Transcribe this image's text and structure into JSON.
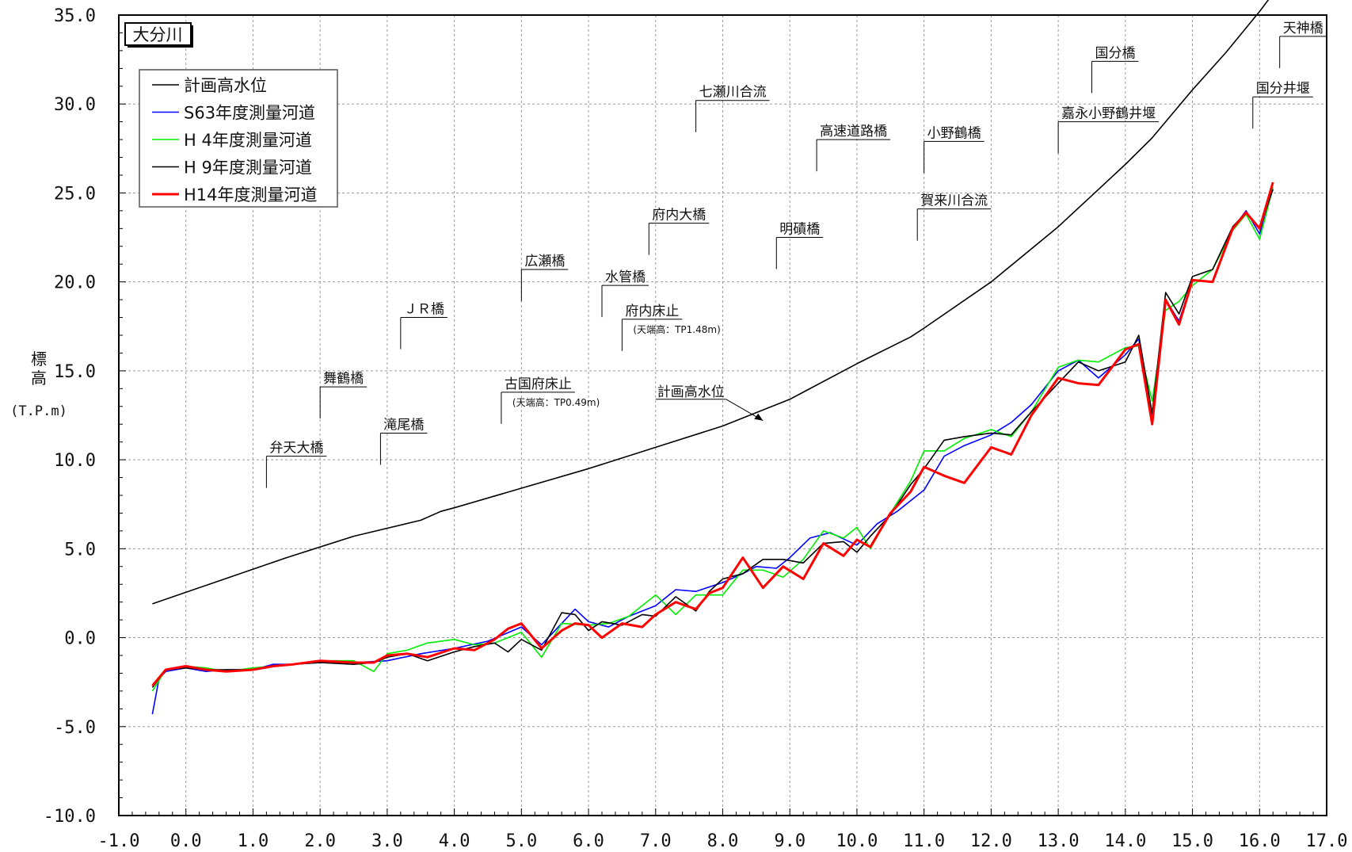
{
  "chart_data": {
    "type": "line",
    "title": "大分川",
    "ylabel_chars": [
      "標",
      "高"
    ],
    "ylabel_unit": "(T.P.m)",
    "xlim": [
      -1.0,
      17.0
    ],
    "ylim": [
      -10.0,
      35.0
    ],
    "x_ticks": [
      "-1.0",
      "0.0",
      "1.0",
      "2.0",
      "3.0",
      "4.0",
      "5.0",
      "6.0",
      "7.0",
      "8.0",
      "9.0",
      "10.0",
      "11.0",
      "12.0",
      "13.0",
      "14.0",
      "15.0",
      "16.0",
      "17.0"
    ],
    "y_ticks": [
      "35.0",
      "30.0",
      "25.0",
      "20.0",
      "15.0",
      "10.0",
      "5.0",
      "0.0",
      "-5.0",
      "-10.0"
    ],
    "grid": true,
    "legend_position": "top-left",
    "series": [
      {
        "name": "計画高水位",
        "color": "#000000",
        "x": [
          -0.5,
          0.5,
          1.5,
          2.5,
          3.5,
          3.8,
          4.0,
          5.0,
          6.0,
          7.0,
          8.0,
          8.6,
          9.0,
          10.0,
          10.8,
          11.0,
          12.0,
          13.0,
          14.0,
          14.4,
          15.0,
          15.5,
          16.0,
          16.2
        ],
        "y": [
          1.9,
          3.2,
          4.5,
          5.7,
          6.6,
          7.1,
          7.3,
          8.4,
          9.5,
          10.7,
          11.9,
          12.8,
          13.4,
          15.4,
          16.9,
          17.4,
          20.0,
          23.1,
          26.6,
          28.1,
          30.8,
          32.9,
          35.2,
          36.2
        ]
      },
      {
        "name": "S63年度測量河道",
        "color": "#0000ff",
        "x": [
          -0.5,
          -0.4,
          -0.3,
          0.0,
          0.3,
          0.6,
          1.0,
          1.3,
          1.6,
          2.0,
          2.5,
          3.0,
          3.5,
          4.0,
          4.5,
          5.0,
          5.3,
          5.6,
          5.8,
          6.0,
          6.3,
          6.6,
          7.0,
          7.3,
          7.6,
          8.0,
          8.3,
          8.5,
          8.8,
          9.0,
          9.3,
          9.6,
          10.0,
          10.3,
          10.6,
          11.0,
          11.3,
          11.6,
          12.0,
          12.3,
          12.6,
          13.0,
          13.3,
          13.6,
          14.0,
          14.2,
          14.4,
          14.6,
          14.8,
          15.0,
          15.3,
          15.6,
          15.8,
          16.0,
          16.2
        ],
        "y": [
          -4.3,
          -2.3,
          -1.9,
          -1.7,
          -1.9,
          -1.8,
          -1.8,
          -1.5,
          -1.5,
          -1.4,
          -1.4,
          -1.3,
          -0.9,
          -0.6,
          -0.2,
          0.6,
          -0.4,
          0.8,
          1.6,
          0.9,
          0.6,
          1.2,
          1.8,
          2.7,
          2.6,
          3.1,
          3.6,
          4.0,
          3.9,
          4.5,
          5.6,
          5.9,
          5.2,
          6.4,
          7.1,
          8.3,
          10.2,
          10.8,
          11.4,
          12.1,
          13.1,
          15.0,
          15.6,
          14.6,
          15.9,
          16.8,
          12.4,
          19.0,
          17.8,
          20.1,
          20.0,
          23.0,
          24.0,
          22.7,
          25.3
        ]
      },
      {
        "name": "H 4年度測量河道",
        "color": "#00ee00",
        "x": [
          -0.5,
          -0.3,
          0.0,
          0.3,
          0.6,
          1.0,
          1.3,
          1.6,
          2.0,
          2.5,
          2.8,
          3.0,
          3.3,
          3.6,
          4.0,
          4.3,
          4.6,
          5.0,
          5.3,
          5.6,
          6.0,
          6.3,
          6.6,
          7.0,
          7.3,
          7.6,
          8.0,
          8.3,
          8.6,
          8.9,
          9.2,
          9.5,
          9.8,
          10.0,
          10.2,
          10.5,
          10.8,
          11.0,
          11.3,
          11.6,
          12.0,
          12.3,
          12.6,
          13.0,
          13.3,
          13.6,
          14.0,
          14.2,
          14.4,
          14.6,
          14.8,
          15.0,
          15.3,
          15.6,
          15.8,
          16.0,
          16.2
        ],
        "y": [
          -3.0,
          -1.8,
          -1.6,
          -1.7,
          -1.9,
          -1.7,
          -1.6,
          -1.5,
          -1.3,
          -1.3,
          -1.9,
          -0.9,
          -0.7,
          -0.3,
          -0.1,
          -0.4,
          -0.3,
          0.3,
          -1.1,
          0.8,
          0.7,
          0.8,
          1.2,
          2.4,
          1.3,
          2.4,
          2.4,
          3.8,
          3.8,
          3.4,
          4.4,
          6.0,
          5.6,
          6.2,
          5.0,
          7.0,
          8.8,
          10.5,
          10.5,
          11.2,
          11.7,
          11.3,
          12.7,
          15.2,
          15.6,
          15.5,
          16.3,
          16.4,
          13.3,
          18.4,
          18.9,
          19.8,
          20.7,
          22.9,
          23.8,
          22.4,
          25.3
        ]
      },
      {
        "name": "H 9年度測量河道",
        "color": "#000000",
        "x": [
          -0.5,
          -0.3,
          0.0,
          0.3,
          0.6,
          1.0,
          1.3,
          1.6,
          2.0,
          2.5,
          2.8,
          3.0,
          3.3,
          3.6,
          4.0,
          4.3,
          4.6,
          4.8,
          5.0,
          5.3,
          5.6,
          5.8,
          6.0,
          6.2,
          6.5,
          6.8,
          7.0,
          7.3,
          7.6,
          7.8,
          8.0,
          8.3,
          8.6,
          8.9,
          9.2,
          9.5,
          9.8,
          10.0,
          10.2,
          10.5,
          10.8,
          11.0,
          11.3,
          11.6,
          12.0,
          12.3,
          12.6,
          13.0,
          13.3,
          13.6,
          14.0,
          14.2,
          14.4,
          14.6,
          14.8,
          15.0,
          15.3,
          15.6,
          15.8,
          16.0,
          16.2
        ],
        "y": [
          -2.8,
          -1.8,
          -1.7,
          -1.8,
          -1.8,
          -1.8,
          -1.6,
          -1.5,
          -1.4,
          -1.5,
          -1.4,
          -1.1,
          -0.9,
          -1.3,
          -0.8,
          -0.5,
          -0.3,
          -0.8,
          -0.1,
          -0.7,
          1.4,
          1.3,
          0.4,
          0.9,
          0.7,
          1.3,
          1.2,
          2.3,
          1.5,
          2.6,
          3.3,
          3.6,
          4.4,
          4.4,
          4.2,
          5.3,
          5.4,
          4.8,
          5.7,
          6.9,
          8.6,
          9.5,
          11.1,
          11.3,
          11.5,
          11.4,
          12.7,
          14.3,
          15.5,
          15.0,
          15.5,
          17.0,
          12.6,
          19.4,
          18.2,
          20.3,
          20.7,
          23.1,
          23.9,
          23.0,
          25.2
        ]
      },
      {
        "name": "H14年度測量河道",
        "color": "#ff0000",
        "x": [
          -0.5,
          -0.3,
          0.0,
          0.3,
          0.6,
          1.0,
          1.3,
          1.6,
          2.0,
          2.5,
          2.8,
          3.0,
          3.3,
          3.6,
          4.0,
          4.3,
          4.6,
          4.8,
          5.0,
          5.3,
          5.6,
          5.8,
          6.0,
          6.2,
          6.5,
          6.8,
          7.0,
          7.3,
          7.6,
          7.8,
          8.0,
          8.3,
          8.6,
          8.9,
          9.2,
          9.5,
          9.8,
          10.0,
          10.2,
          10.5,
          10.8,
          11.0,
          11.3,
          11.6,
          12.0,
          12.3,
          12.6,
          13.0,
          13.3,
          13.6,
          14.0,
          14.2,
          14.4,
          14.6,
          14.8,
          15.0,
          15.3,
          15.6,
          15.8,
          16.0,
          16.2
        ],
        "y": [
          -2.7,
          -1.8,
          -1.6,
          -1.8,
          -1.9,
          -1.8,
          -1.6,
          -1.5,
          -1.3,
          -1.4,
          -1.4,
          -1.0,
          -0.9,
          -1.1,
          -0.6,
          -0.7,
          -0.1,
          0.5,
          0.8,
          -0.6,
          0.4,
          0.8,
          0.7,
          0.0,
          0.8,
          0.6,
          1.3,
          2.0,
          1.6,
          2.5,
          2.8,
          4.5,
          2.8,
          4.0,
          3.3,
          5.3,
          4.6,
          5.5,
          5.1,
          7.0,
          8.2,
          9.6,
          9.1,
          8.7,
          10.7,
          10.3,
          12.5,
          14.6,
          14.3,
          14.2,
          16.2,
          16.5,
          12.0,
          19.0,
          17.6,
          20.1,
          20.0,
          23.0,
          23.9,
          23.0,
          25.6
        ]
      }
    ],
    "annotations": [
      {
        "text": "弁天大橋",
        "x": 1.2,
        "y": 10.2
      },
      {
        "text": "舞鶴橋",
        "x": 2.0,
        "y": 14.1
      },
      {
        "text": "ＪＲ橋",
        "x": 3.2,
        "y": 18.0
      },
      {
        "text": "滝尾橋",
        "x": 2.9,
        "y": 11.5
      },
      {
        "text": "古国府床止",
        "x": 4.7,
        "y": 13.8,
        "sub": "(天端高：TP0.49m)"
      },
      {
        "text": "広瀬橋",
        "x": 5.0,
        "y": 20.7
      },
      {
        "text": "水管橋",
        "x": 6.2,
        "y": 19.8
      },
      {
        "text": "府内床止",
        "x": 6.5,
        "y": 17.9,
        "sub": "(天端高：TP1.48m)"
      },
      {
        "text": "府内大橋",
        "x": 6.9,
        "y": 23.3
      },
      {
        "text": "計画高水位",
        "x": 7.0,
        "y": 13.4
      },
      {
        "text": "七瀬川合流",
        "x": 7.6,
        "y": 30.2
      },
      {
        "text": "明磧橋",
        "x": 8.8,
        "y": 22.5
      },
      {
        "text": "高速道路橋",
        "x": 9.4,
        "y": 28.0
      },
      {
        "text": "小野鶴橋",
        "x": 11.0,
        "y": 27.9
      },
      {
        "text": "賀来川合流",
        "x": 10.9,
        "y": 24.1
      },
      {
        "text": "国分橋",
        "x": 13.5,
        "y": 32.4
      },
      {
        "text": "嘉永小野鶴井堰",
        "x": 13.0,
        "y": 29.0
      },
      {
        "text": "国分井堰",
        "x": 15.9,
        "y": 30.4
      },
      {
        "text": "天神橋",
        "x": 16.3,
        "y": 33.8
      }
    ]
  }
}
